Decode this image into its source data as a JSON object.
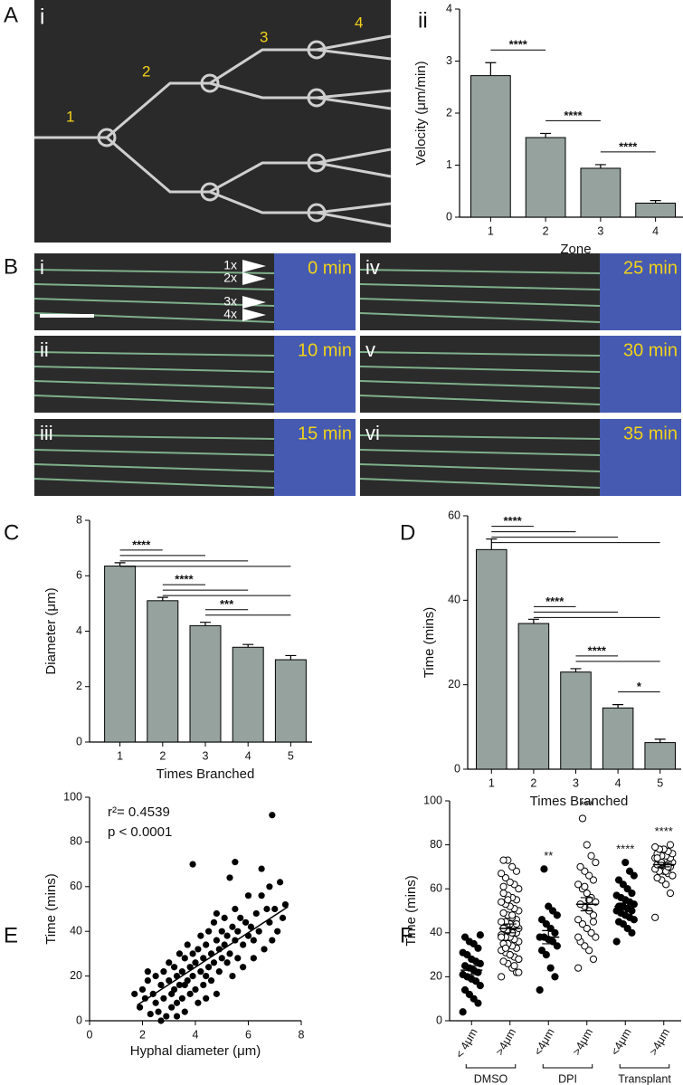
{
  "panel_letters": [
    "A",
    "B",
    "C",
    "D",
    "E",
    "F"
  ],
  "image_a": {
    "label": "i",
    "zones": [
      "1",
      "2",
      "3",
      "4"
    ]
  },
  "image_b": {
    "frames": [
      {
        "label": "i",
        "time": "0 min"
      },
      {
        "label": "ii",
        "time": "10 min"
      },
      {
        "label": "iii",
        "time": "15 min"
      },
      {
        "label": "iv",
        "time": "25 min"
      },
      {
        "label": "v",
        "time": "30 min"
      },
      {
        "label": "vi",
        "time": "35 min"
      }
    ],
    "branch_labels": [
      "1x",
      "2x",
      "3x",
      "4x"
    ]
  },
  "chart_data": [
    {
      "type": "bar",
      "panel_label": "ii",
      "xlabel": "Zone",
      "ylabel": "Velocity (μm/min)",
      "categories": [
        "1",
        "2",
        "3",
        "4"
      ],
      "values": [
        2.72,
        1.53,
        0.94,
        0.27
      ],
      "errors": [
        0.25,
        0.08,
        0.07,
        0.05
      ],
      "color": "#95a29e",
      "ylim": [
        0,
        4
      ],
      "yticks": [
        0,
        1,
        2,
        3,
        4
      ],
      "annotations": [
        {
          "text": "****",
          "from": "1",
          "to": [
            "2"
          ]
        },
        {
          "text": "****",
          "from": "2",
          "to": [
            "3"
          ]
        },
        {
          "text": "****",
          "from": "3",
          "to": [
            "4"
          ]
        }
      ]
    },
    {
      "type": "bar",
      "xlabel": "Times Branched",
      "ylabel": "Diameter (μm)",
      "categories": [
        "1",
        "2",
        "3",
        "4",
        "5"
      ],
      "values": [
        6.35,
        5.1,
        4.2,
        3.42,
        2.97
      ],
      "errors": [
        0.12,
        0.12,
        0.12,
        0.1,
        0.15
      ],
      "color": "#95a29e",
      "ylim": [
        0,
        8
      ],
      "yticks": [
        0,
        2,
        4,
        6,
        8
      ],
      "annotations": [
        {
          "text": "****",
          "from": "1",
          "to": [
            "2",
            "3",
            "4",
            "5"
          ]
        },
        {
          "text": "****",
          "from": "2",
          "to": [
            "3",
            "4",
            "5"
          ]
        },
        {
          "text": "***",
          "from": "3",
          "to": [
            "4",
            "5"
          ]
        }
      ]
    },
    {
      "type": "bar",
      "xlabel": "Times Branched",
      "ylabel": "Time (mins)",
      "categories": [
        "1",
        "2",
        "3",
        "4",
        "5"
      ],
      "values": [
        52,
        34.5,
        23,
        14.5,
        6.3
      ],
      "errors": [
        2.5,
        1,
        0.8,
        0.8,
        0.8
      ],
      "color": "#95a29e",
      "ylim": [
        0,
        60
      ],
      "yticks": [
        0,
        20,
        40,
        60
      ],
      "annotations": [
        {
          "text": "****",
          "from": "1",
          "to": [
            "2",
            "3",
            "4",
            "5"
          ]
        },
        {
          "text": "****",
          "from": "2",
          "to": [
            "3",
            "4",
            "5"
          ]
        },
        {
          "text": "****",
          "from": "3",
          "to": [
            "4",
            "5"
          ]
        },
        {
          "text": "*",
          "from": "4",
          "to": [
            "5"
          ]
        }
      ]
    },
    {
      "type": "scatter",
      "xlabel": "Hyphal diameter (μm)",
      "ylabel": "Time (mins)",
      "stat_lines": [
        "r²= 0.4539",
        "p < 0.0001"
      ],
      "color": "#000000",
      "xlim": [
        0,
        8
      ],
      "xticks": [
        0,
        2,
        4,
        6,
        8
      ],
      "ylim": [
        0,
        100
      ],
      "yticks": [
        0,
        20,
        40,
        60,
        80,
        100
      ],
      "x": [
        1.7,
        1.9,
        2.0,
        2.1,
        2.2,
        2.3,
        2.4,
        2.5,
        2.5,
        2.6,
        2.7,
        2.8,
        2.8,
        2.9,
        3.0,
        3.0,
        3.1,
        3.1,
        3.2,
        3.2,
        3.3,
        3.3,
        3.4,
        3.4,
        3.5,
        3.5,
        3.6,
        3.6,
        3.7,
        3.7,
        3.8,
        3.8,
        3.9,
        3.9,
        4.0,
        4.0,
        4.1,
        4.1,
        4.2,
        4.2,
        4.3,
        4.3,
        4.4,
        4.4,
        4.5,
        4.5,
        4.6,
        4.6,
        4.7,
        4.7,
        4.8,
        4.8,
        4.9,
        4.9,
        5.0,
        5.0,
        5.1,
        5.1,
        5.2,
        5.2,
        5.3,
        5.3,
        5.4,
        5.4,
        5.5,
        5.5,
        5.6,
        5.6,
        5.7,
        5.8,
        5.9,
        6.0,
        6.0,
        6.1,
        6.2,
        6.3,
        6.4,
        6.5,
        6.6,
        6.7,
        6.8,
        6.8,
        6.9,
        7.0,
        7.1,
        7.2,
        7.3,
        7.4,
        3.6,
        5.5,
        6.9,
        4.4,
        2.7,
        3.9,
        6.5,
        5.8,
        2.2,
        3.3,
        4.8,
        6.2
      ],
      "y": [
        12,
        6,
        14,
        10,
        18,
        3,
        12,
        20,
        8,
        4,
        16,
        22,
        10,
        2,
        18,
        26,
        12,
        6,
        24,
        14,
        20,
        8,
        30,
        16,
        22,
        10,
        28,
        4,
        18,
        34,
        24,
        12,
        20,
        70,
        26,
        14,
        32,
        8,
        22,
        38,
        28,
        16,
        34,
        20,
        40,
        24,
        18,
        30,
        44,
        26,
        36,
        12,
        32,
        22,
        40,
        28,
        46,
        34,
        26,
        38,
        64,
        30,
        42,
        20,
        36,
        71,
        40,
        28,
        46,
        34,
        44,
        38,
        56,
        42,
        36,
        48,
        40,
        68,
        32,
        50,
        60,
        44,
        92,
        50,
        40,
        62,
        46,
        52,
        16,
        50,
        36,
        10,
        0,
        30,
        56,
        24,
        22,
        2,
        48,
        28
      ],
      "fit": {
        "x": [
          1.8,
          7.5
        ],
        "y": [
          7,
          51
        ]
      }
    },
    {
      "type": "dot",
      "ylabel": "Time (mins)",
      "ylim": [
        0,
        100
      ],
      "yticks": [
        0,
        20,
        40,
        60,
        80,
        100
      ],
      "group_labels": [
        "DMSO",
        "DPI",
        "Transplant"
      ],
      "groups": [
        {
          "name": "< 4μm",
          "filled": true,
          "mean": 23,
          "sem": 2,
          "annotation": null,
          "values": [
            4,
            8,
            10,
            12,
            14,
            16,
            18,
            19,
            20,
            21,
            22,
            23,
            24,
            25,
            26,
            27,
            28,
            30,
            31,
            33,
            35,
            36,
            38,
            39
          ]
        },
        {
          "name": ">4μm",
          "filled": false,
          "mean": 42,
          "sem": 2,
          "annotation": null,
          "values": [
            20,
            22,
            24,
            26,
            27,
            28,
            29,
            30,
            31,
            32,
            33,
            34,
            35,
            35,
            36,
            37,
            38,
            38,
            39,
            40,
            40,
            41,
            42,
            42,
            43,
            44,
            45,
            45,
            46,
            47,
            48,
            49,
            50,
            51,
            52,
            53,
            54,
            55,
            56,
            57,
            58,
            60,
            62,
            63,
            65,
            67,
            68,
            70,
            73,
            73,
            22,
            25,
            30,
            33,
            38,
            44,
            48,
            55,
            61,
            28
          ]
        },
        {
          "name": "<4μm",
          "filled": true,
          "mean": 38,
          "sem": 3,
          "annotation": "**",
          "values": [
            14,
            20,
            24,
            30,
            32,
            34,
            36,
            37,
            38,
            38,
            40,
            42,
            44,
            46,
            48,
            50,
            52,
            69
          ]
        },
        {
          "name": ">4μm",
          "filled": false,
          "mean": 53,
          "sem": 3,
          "annotation": "***",
          "values": [
            24,
            28,
            32,
            34,
            36,
            38,
            40,
            42,
            44,
            46,
            48,
            50,
            52,
            53,
            54,
            56,
            58,
            60,
            62,
            64,
            66,
            68,
            70,
            72,
            75,
            80,
            92,
            38,
            45,
            55,
            61
          ]
        },
        {
          "name": "<4μm",
          "filled": true,
          "mean": 52,
          "sem": 1.5,
          "annotation": "****",
          "values": [
            36,
            40,
            42,
            44,
            45,
            46,
            47,
            48,
            49,
            50,
            50,
            51,
            52,
            52,
            53,
            54,
            55,
            56,
            57,
            58,
            60,
            62,
            64,
            66,
            68,
            72
          ]
        },
        {
          "name": ">4μm",
          "filled": false,
          "mean": 71,
          "sem": 1,
          "annotation": "****",
          "values": [
            47,
            58,
            62,
            64,
            65,
            66,
            67,
            68,
            68,
            69,
            70,
            70,
            71,
            71,
            72,
            72,
            73,
            73,
            74,
            74,
            75,
            75,
            76,
            76,
            77,
            78,
            78,
            79,
            80,
            68,
            72,
            74,
            66,
            70
          ]
        }
      ]
    }
  ]
}
